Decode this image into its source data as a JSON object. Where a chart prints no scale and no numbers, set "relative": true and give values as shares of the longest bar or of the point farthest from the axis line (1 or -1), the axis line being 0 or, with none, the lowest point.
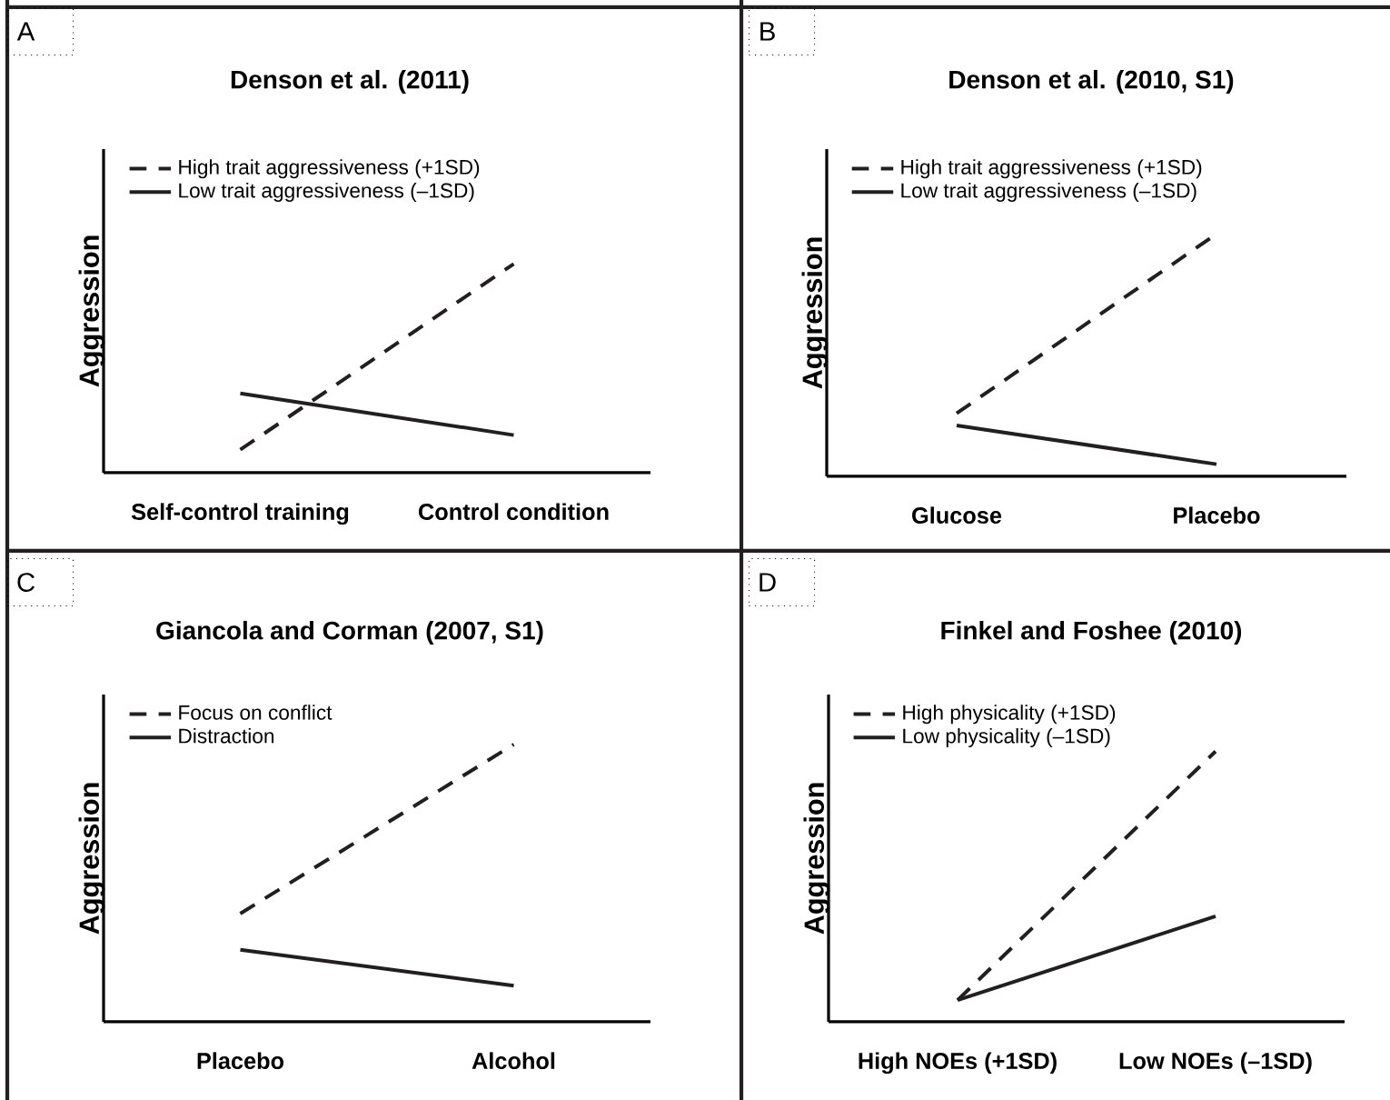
{
  "chart_data": [
    {
      "type": "line",
      "title": "Denson et al. (2011)",
      "ylabel": "Aggression",
      "relative": true,
      "legend": "top left",
      "annotations": [
        "A"
      ],
      "categories": [
        "Self-control training",
        "Control condition"
      ],
      "series": [
        {
          "name": "High trait aggressiveness (+1SD)",
          "color": "#231f20",
          "line_style": "dashed",
          "values": [
            0.11,
            1
          ]
        },
        {
          "name": "Low trait aggressiveness (–1SD)",
          "color": "#231f20",
          "line_style": "solid",
          "values": [
            0.38,
            0.18
          ]
        }
      ]
    },
    {
      "type": "line",
      "title": "Denson et al. (2010, S1)",
      "ylabel": "Aggression",
      "relative": true,
      "legend": "top left",
      "annotations": [
        "B"
      ],
      "categories": [
        "Glucose",
        "Placebo"
      ],
      "series": [
        {
          "name": "High trait aggressiveness (+1SD)",
          "color": "#231f20",
          "line_style": "dashed",
          "values": [
            0.26,
            1
          ]
        },
        {
          "name": "Low trait aggressiveness (–1SD)",
          "color": "#231f20",
          "line_style": "solid",
          "values": [
            0.21,
            0.05
          ]
        }
      ]
    },
    {
      "type": "line",
      "title": "Giancola and Corman (2007, S1)",
      "ylabel": "Aggression",
      "relative": true,
      "legend": "top left",
      "annotations": [
        "C"
      ],
      "categories": [
        "Placebo",
        "Alcohol"
      ],
      "series": [
        {
          "name": "Focus on conflict",
          "color": "#231f20",
          "line_style": "dashed",
          "values": [
            0.39,
            1
          ]
        },
        {
          "name": "Distraction",
          "color": "#231f20",
          "line_style": "solid",
          "values": [
            0.26,
            0.13
          ]
        }
      ]
    },
    {
      "type": "line",
      "title": "Finkel and Foshee (2010)",
      "ylabel": "Aggression",
      "relative": true,
      "legend": "top left",
      "annotations": [
        "D"
      ],
      "categories": [
        "High NOEs (+1SD)",
        "Low NOEs (–1SD)"
      ],
      "series": [
        {
          "name": "High physicality (+1SD)",
          "color": "#231f20",
          "line_style": "dashed",
          "values": [
            0.08,
            1
          ]
        },
        {
          "name": "Low physicality (–1SD)",
          "color": "#231f20",
          "line_style": "solid",
          "values": [
            0.08,
            0.39
          ]
        }
      ]
    }
  ]
}
